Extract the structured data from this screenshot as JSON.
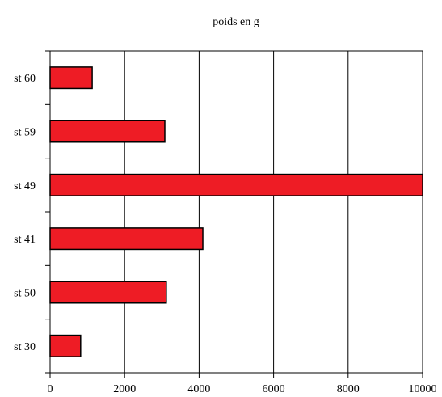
{
  "chart_data": {
    "type": "bar",
    "orientation": "horizontal",
    "title": "poids en g",
    "xlabel": "",
    "ylabel": "",
    "categories": [
      "st 30",
      "st 50",
      "st 41",
      "st 49",
      "st 59",
      "st 60"
    ],
    "values": [
      820,
      3120,
      4100,
      10000,
      3080,
      1130
    ],
    "xlim": [
      0,
      10000
    ],
    "xticks": [
      0,
      2000,
      4000,
      6000,
      8000,
      10000
    ],
    "xtick_labels": [
      "0",
      "2000",
      "4000",
      "6000",
      "8000",
      "10000"
    ],
    "grid": "vertical",
    "legend": "none",
    "bar_color": "#ee1c25",
    "bar_edge_color": "#000000"
  }
}
